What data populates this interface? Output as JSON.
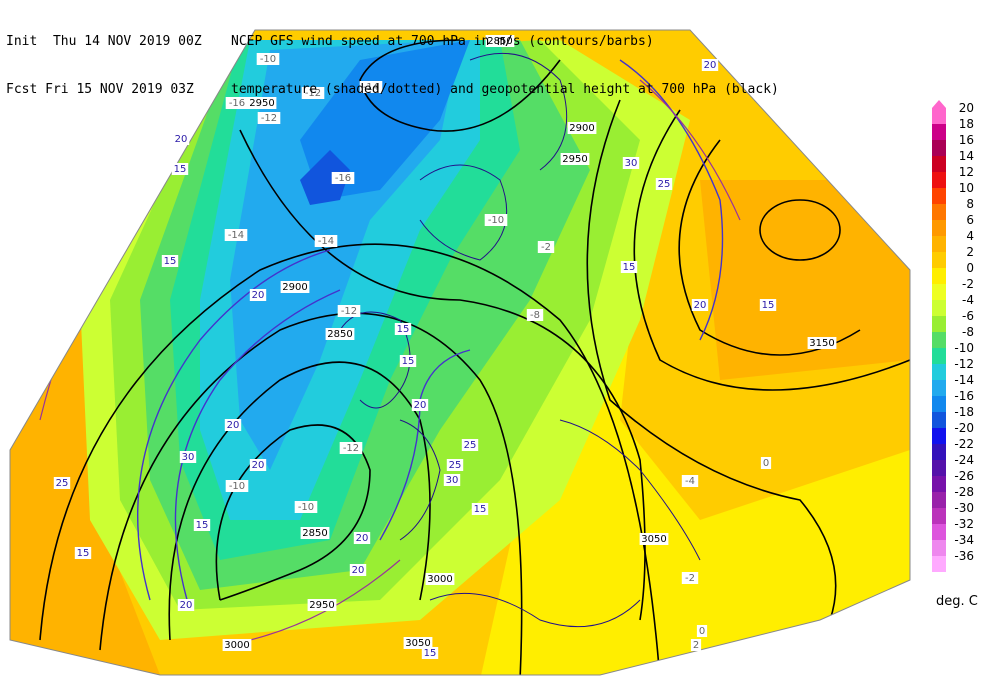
{
  "header": {
    "init_label": "Init  Thu 14 NOV 2019 00Z",
    "fcst_label": "Fcst Fri 15 NOV 2019 03Z",
    "title_line1": "NCEP GFS wind speed at 700 hPa in m/s (contours/barbs)",
    "title_line2": "temperature (shaded/dotted) and geopotential height at 700 hPa (black)"
  },
  "colorbar": {
    "units": "deg. C",
    "levels": [
      "20",
      "18",
      "16",
      "14",
      "12",
      "10",
      "8",
      "6",
      "4",
      "2",
      "0",
      "-2",
      "-4",
      "-6",
      "-8",
      "-10",
      "-12",
      "-14",
      "-16",
      "-18",
      "-20",
      "-22",
      "-24",
      "-26",
      "-28",
      "-30",
      "-32",
      "-34",
      "-36"
    ],
    "colors": [
      "#ff66cc",
      "#cc0088",
      "#aa0055",
      "#cc0022",
      "#ee1111",
      "#ff4400",
      "#ff7700",
      "#ff9900",
      "#ffb300",
      "#ffcc00",
      "#ffee00",
      "#eeff22",
      "#ccff33",
      "#99ee33",
      "#55dd66",
      "#22dd99",
      "#22ccdd",
      "#22aaee",
      "#1188ee",
      "#1155dd",
      "#1111ee",
      "#3311bb",
      "#5511aa",
      "#7711aa",
      "#9922aa",
      "#bb33bb",
      "#dd55dd",
      "#ee88ee",
      "#ffaaff"
    ]
  },
  "map_labels": {
    "heights": [
      {
        "text": "2850",
        "color": "#000"
      },
      {
        "text": "2850",
        "color": "#000"
      },
      {
        "text": "2850",
        "color": "#000"
      },
      {
        "text": "2900",
        "color": "#000"
      },
      {
        "text": "2900",
        "color": "#000"
      },
      {
        "text": "2950",
        "color": "#000"
      },
      {
        "text": "2950",
        "color": "#000"
      },
      {
        "text": "2950",
        "color": "#000"
      },
      {
        "text": "3000",
        "color": "#000"
      },
      {
        "text": "3000",
        "color": "#000"
      },
      {
        "text": "3050",
        "color": "#000"
      },
      {
        "text": "3050",
        "color": "#000"
      },
      {
        "text": "3150",
        "color": "#000"
      }
    ],
    "winds": [
      "30",
      "25",
      "20",
      "15",
      "20",
      "15",
      "30",
      "20",
      "15",
      "20",
      "25",
      "20",
      "15",
      "15",
      "20",
      "20",
      "25",
      "30",
      "15",
      "20",
      "15",
      "20",
      "15",
      "15",
      "25",
      "20",
      "15"
    ],
    "temps": [
      "-10",
      "-12",
      "-14",
      "-16",
      "-12",
      "-14",
      "-12",
      "-10",
      "-12",
      "-10",
      "-2",
      "0",
      "-2",
      "0",
      "2",
      "-4",
      "-8",
      "-10",
      "-14",
      "-16"
    ]
  }
}
